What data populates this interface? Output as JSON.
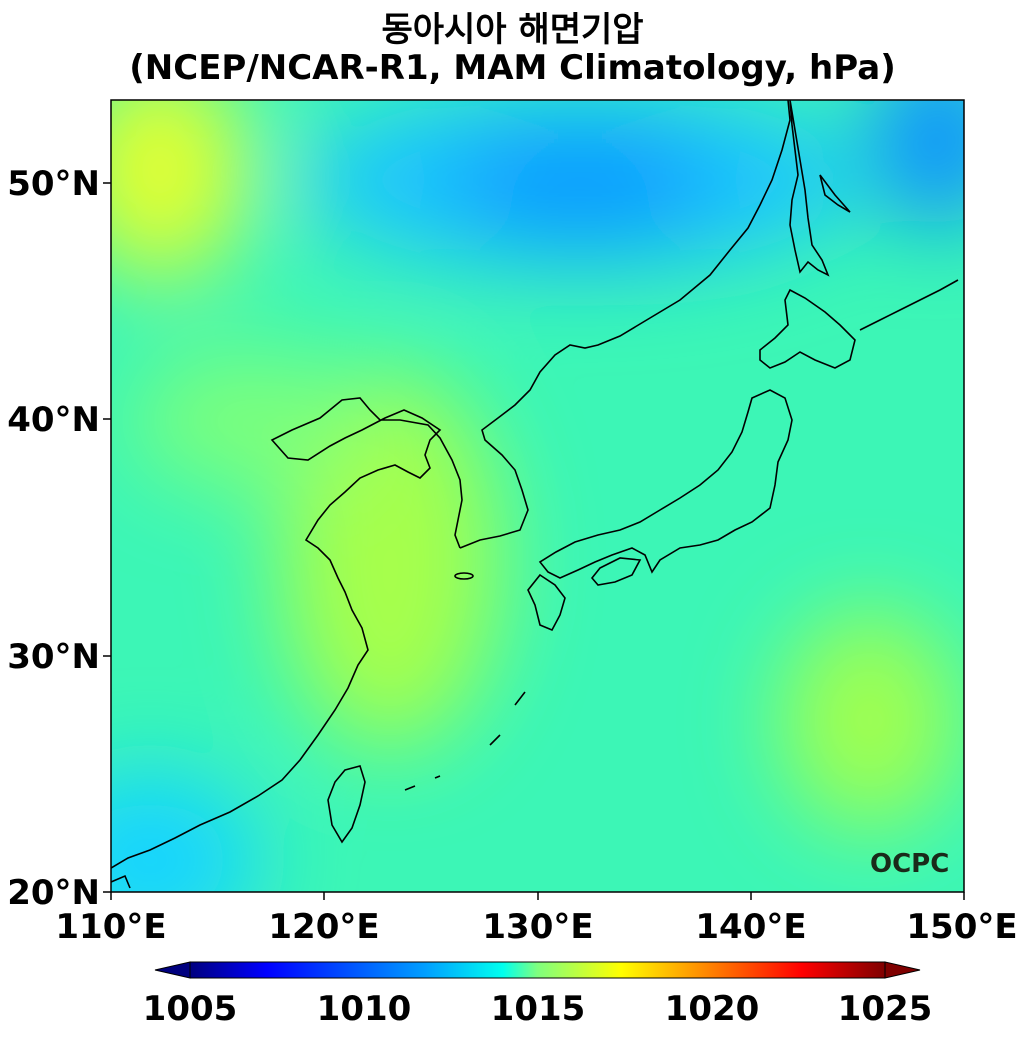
{
  "title": {
    "line1": "동아시아 해면기압",
    "line2": "(NCEP/NCAR-R1, MAM Climatology, hPa)"
  },
  "map": {
    "lon_range": [
      110,
      150
    ],
    "lat_range": [
      20,
      53.5
    ],
    "lon_ticks": [
      "110°E",
      "120°E",
      "130°E",
      "140°E",
      "150°E"
    ],
    "lat_ticks": [
      "20°N",
      "30°N",
      "40°N",
      "50°N"
    ],
    "field": "sea level pressure",
    "features": [
      {
        "name": "low-pressure-north",
        "lon": 132,
        "lat": 49.5,
        "value": 1011.5
      },
      {
        "name": "high-yellow-sea",
        "lon": 123.5,
        "lat": 34.5,
        "value": 1016.8
      },
      {
        "name": "high-nw-corner",
        "lon": 110,
        "lat": 53,
        "value": 1017.5
      },
      {
        "name": "high-se",
        "lon": 147,
        "lat": 27,
        "value": 1016.6
      },
      {
        "name": "low-sw-corner",
        "lon": 110,
        "lat": 20,
        "value": 1012.5
      }
    ],
    "coastline_color": "#000000"
  },
  "colorbar": {
    "min": 1005,
    "max": 1025,
    "ticks": [
      "1005",
      "1010",
      "1015",
      "1020",
      "1025"
    ],
    "colormap": "jet",
    "extend": "both",
    "colors": [
      "#00007f",
      "#0000ff",
      "#007fff",
      "#00ffff",
      "#7fff7f",
      "#ffff00",
      "#ff7f00",
      "#ff0000",
      "#7f0000"
    ]
  },
  "logo": {
    "text": "OCPC"
  }
}
